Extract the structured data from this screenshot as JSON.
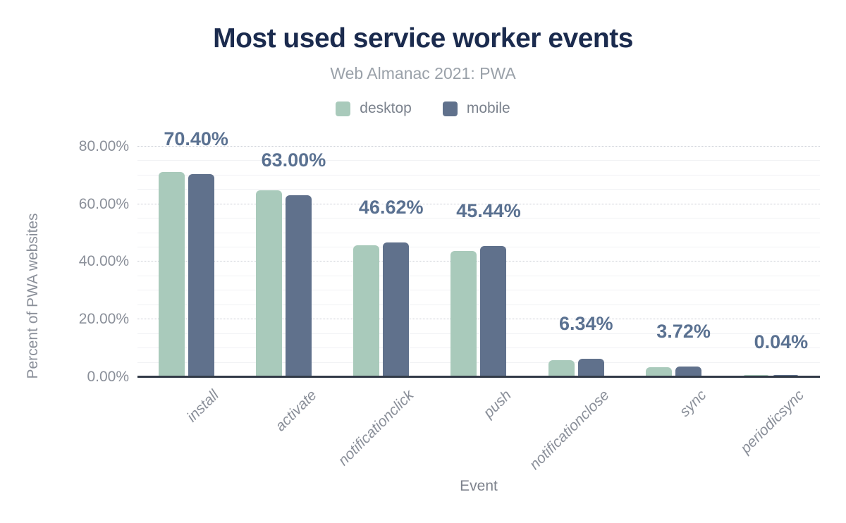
{
  "header": {
    "title": "Most used service worker events",
    "subtitle": "Web Almanac 2021: PWA"
  },
  "colors": {
    "desktop": "#a9cabb",
    "mobile": "#60718c",
    "value_label": "#5a7191",
    "title_text": "#1b2b4e",
    "axis_text": "#8a8f99",
    "axis_line": "#323a47"
  },
  "chart_data": {
    "type": "bar",
    "title": "Most used service worker events",
    "subtitle": "Web Almanac 2021: PWA",
    "xlabel": "Event",
    "ylabel": "Percent of PWA websites",
    "categories": [
      "install",
      "activate",
      "notificationclick",
      "push",
      "notificationclose",
      "sync",
      "periodicsync"
    ],
    "series": [
      {
        "name": "desktop",
        "color": "#a9cabb",
        "values": [
          71.2,
          64.8,
          45.7,
          43.8,
          5.9,
          3.4,
          0.05
        ]
      },
      {
        "name": "mobile",
        "color": "#60718c",
        "values": [
          70.4,
          63.0,
          46.62,
          45.44,
          6.34,
          3.72,
          0.04
        ]
      }
    ],
    "value_labels": [
      "70.40%",
      "63.00%",
      "46.62%",
      "45.44%",
      "6.34%",
      "3.72%",
      "0.04%"
    ],
    "labeled_series": "mobile",
    "yticks": [
      {
        "pct": 0,
        "label": "0.00%"
      },
      {
        "pct": 20,
        "label": "20.00%"
      },
      {
        "pct": 40,
        "label": "40.00%"
      },
      {
        "pct": 60,
        "label": "60.00%"
      },
      {
        "pct": 80,
        "label": "80.00%"
      }
    ],
    "ylim": [
      0,
      85.6
    ],
    "grid": {
      "major": [
        20,
        40,
        60,
        80
      ],
      "minor": [
        5,
        10,
        15,
        25,
        30,
        35,
        45,
        50,
        55,
        65,
        70,
        75
      ]
    },
    "legend_position": "top"
  }
}
